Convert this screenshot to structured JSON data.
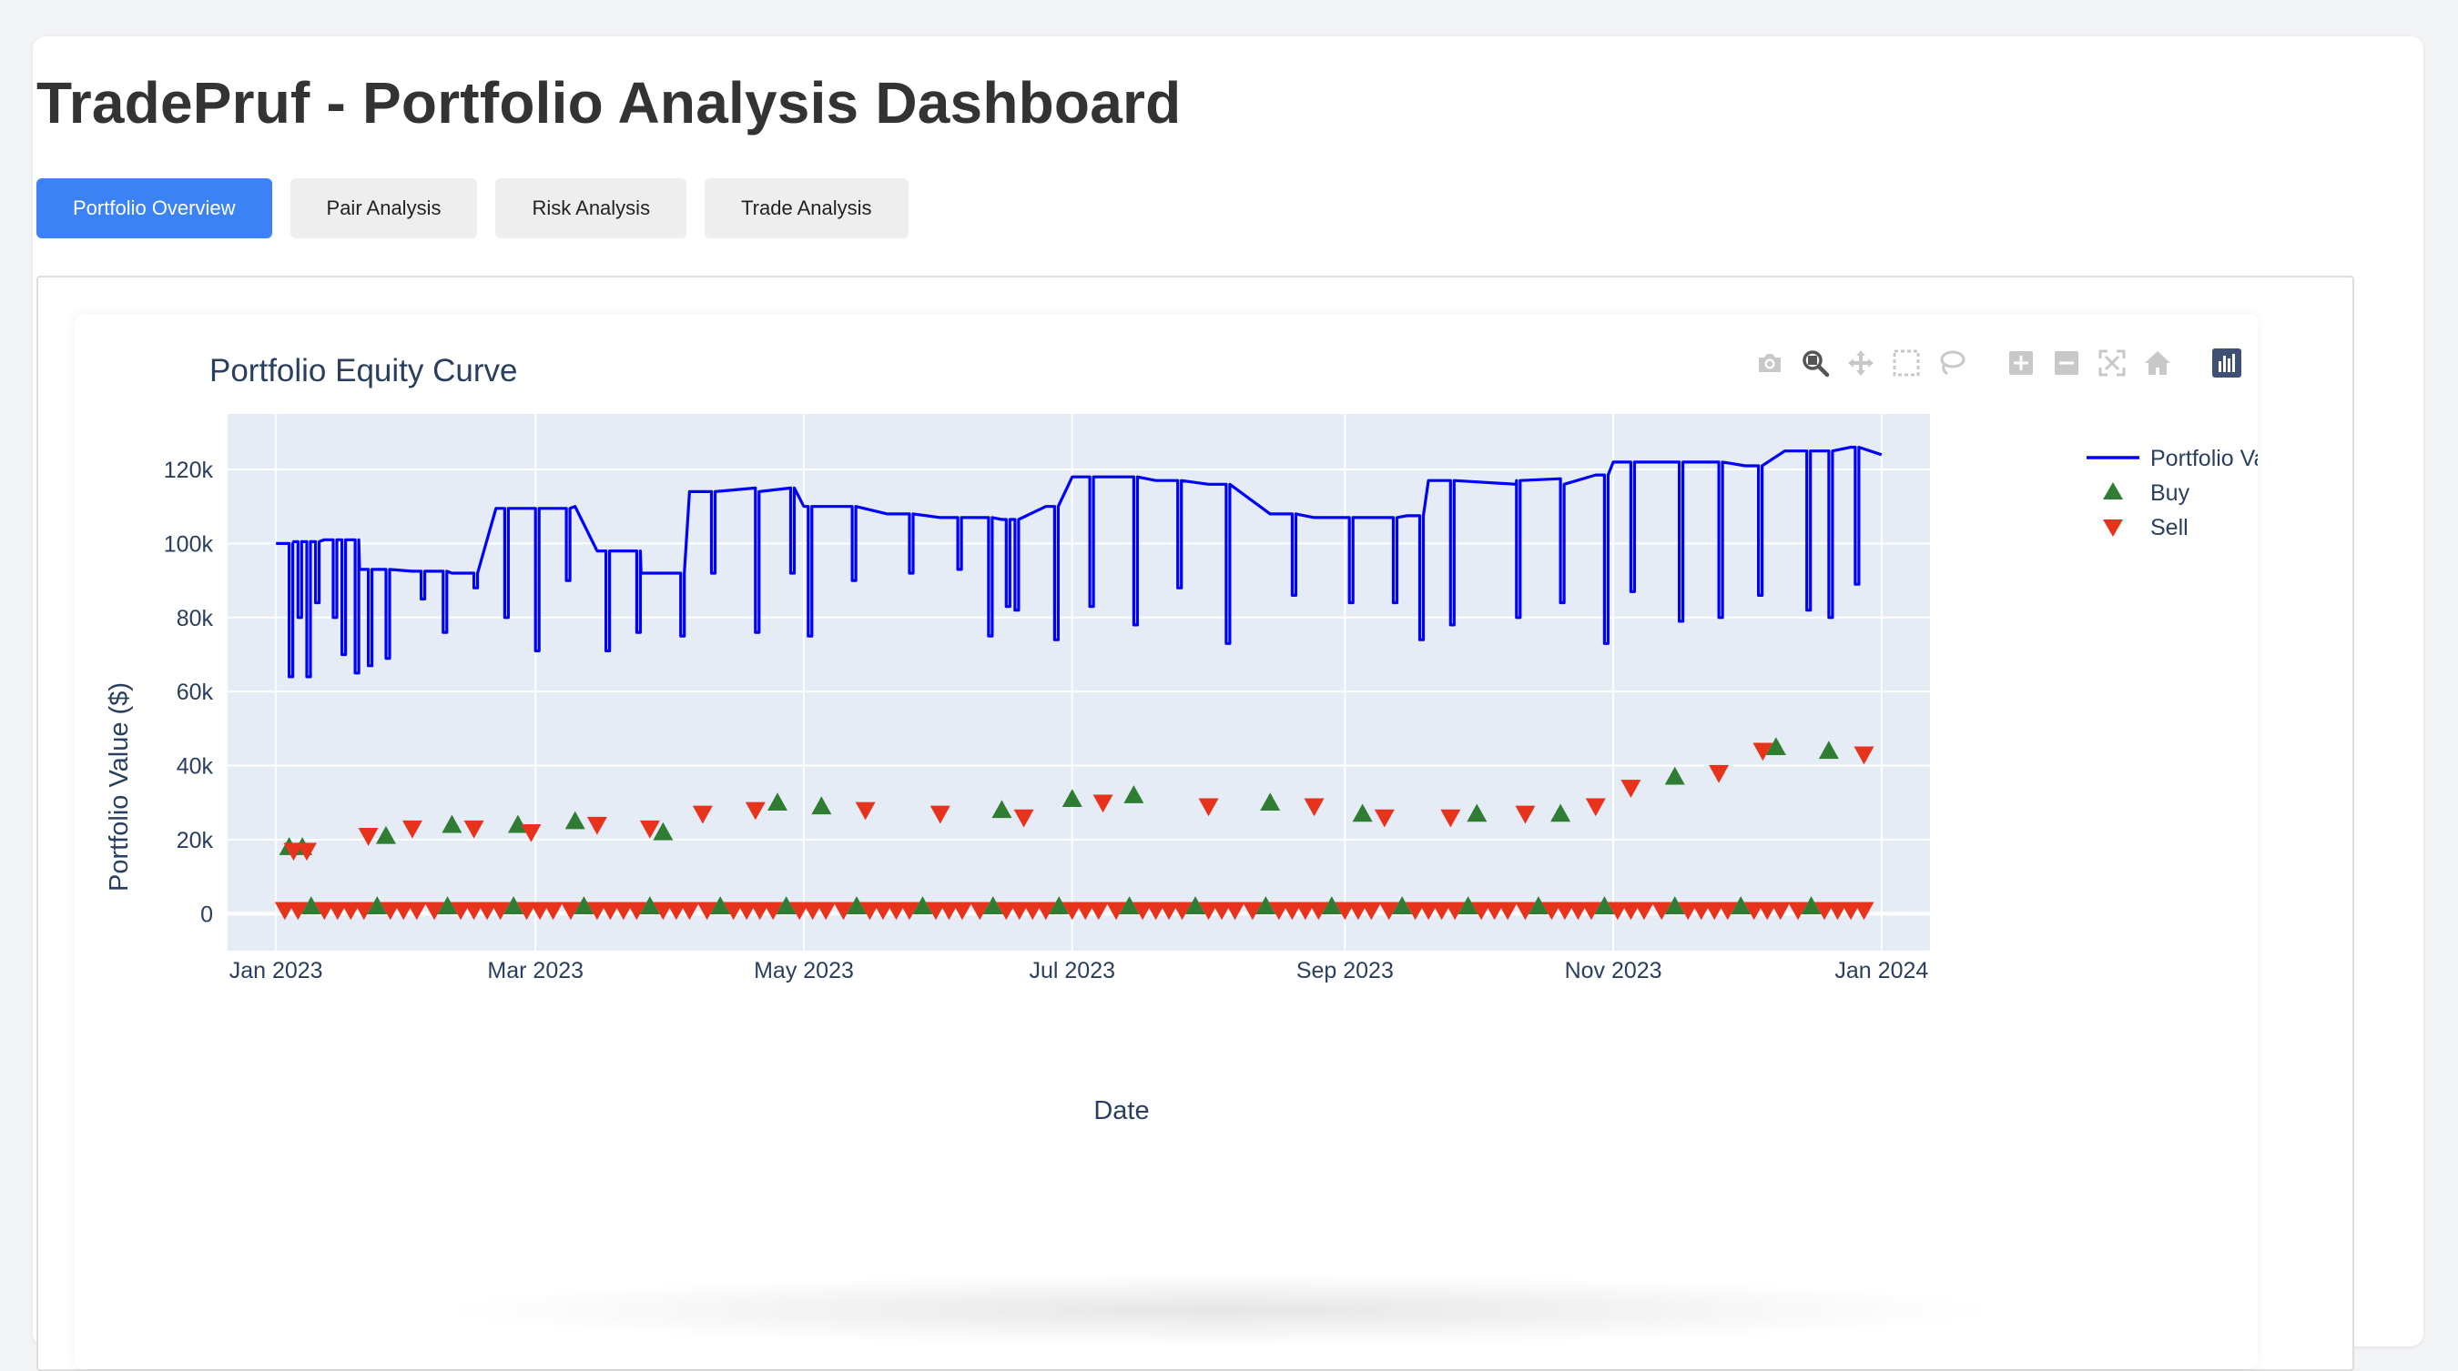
{
  "page": {
    "title": "TradePruf - Portfolio Analysis Dashboard"
  },
  "tabs": [
    {
      "label": "Portfolio Overview",
      "active": true
    },
    {
      "label": "Pair Analysis",
      "active": false
    },
    {
      "label": "Risk Analysis",
      "active": false
    },
    {
      "label": "Trade Analysis",
      "active": false
    }
  ],
  "colors": {
    "accent": "#3b82f6",
    "plot_bg": "#e5ecf6",
    "line": "#0000ff",
    "buy": "#2e7d32",
    "sell": "#e8331c"
  },
  "modebar": [
    "camera-icon",
    "zoom-icon",
    "pan-icon",
    "box-select-icon",
    "lasso-select-icon",
    "zoom-in-icon",
    "zoom-out-icon",
    "autoscale-icon",
    "reset-axes-icon",
    "plotly-logo-icon"
  ],
  "chart_data": {
    "type": "line",
    "title": "Portfolio Equity Curve",
    "xlabel": "Date",
    "ylabel": "Portfolio Value ($)",
    "xlim": [
      "2022-12-21",
      "2024-01-12"
    ],
    "ylim": [
      -10000,
      135000
    ],
    "grid": true,
    "legend_position": "top-right",
    "x_ticks": [
      {
        "label": "Jan 2023",
        "date": "2023-01-01"
      },
      {
        "label": "Mar 2023",
        "date": "2023-03-01"
      },
      {
        "label": "May 2023",
        "date": "2023-05-01"
      },
      {
        "label": "Jul 2023",
        "date": "2023-07-01"
      },
      {
        "label": "Sep 2023",
        "date": "2023-09-01"
      },
      {
        "label": "Nov 2023",
        "date": "2023-11-01"
      },
      {
        "label": "Jan 2024",
        "date": "2024-01-01"
      }
    ],
    "y_ticks": [
      {
        "label": "0",
        "value": 0
      },
      {
        "label": "20k",
        "value": 20000
      },
      {
        "label": "40k",
        "value": 40000
      },
      {
        "label": "60k",
        "value": 60000
      },
      {
        "label": "80k",
        "value": 80000
      },
      {
        "label": "100k",
        "value": 100000
      },
      {
        "label": "120k",
        "value": 120000
      }
    ],
    "series": [
      {
        "name": "Portfolio Value",
        "mode": "lines",
        "color": "#0000ff",
        "base_points": [
          [
            "2023-01-01",
            100000
          ],
          [
            "2023-01-05",
            100500
          ],
          [
            "2023-01-12",
            101000
          ],
          [
            "2023-01-20",
            93000
          ],
          [
            "2023-02-01",
            92500
          ],
          [
            "2023-02-10",
            92000
          ],
          [
            "2023-02-20",
            109500
          ],
          [
            "2023-03-01",
            109500
          ],
          [
            "2023-03-10",
            110000
          ],
          [
            "2023-03-15",
            98000
          ],
          [
            "2023-03-25",
            92000
          ],
          [
            "2023-04-01",
            92000
          ],
          [
            "2023-04-05",
            114000
          ],
          [
            "2023-04-20",
            115000
          ],
          [
            "2023-05-01",
            110000
          ],
          [
            "2023-05-20",
            108000
          ],
          [
            "2023-06-01",
            107000
          ],
          [
            "2023-06-15",
            106500
          ],
          [
            "2023-06-25",
            110000
          ],
          [
            "2023-07-01",
            118000
          ],
          [
            "2023-07-20",
            117000
          ],
          [
            "2023-08-01",
            116000
          ],
          [
            "2023-08-15",
            108000
          ],
          [
            "2023-08-25",
            107000
          ],
          [
            "2023-09-01",
            107000
          ],
          [
            "2023-09-15",
            107500
          ],
          [
            "2023-09-20",
            117000
          ],
          [
            "2023-10-10",
            116000
          ],
          [
            "2023-10-20",
            117500
          ],
          [
            "2023-10-28",
            118500
          ],
          [
            "2023-11-01",
            122000
          ],
          [
            "2023-11-20",
            122000
          ],
          [
            "2023-12-01",
            121000
          ],
          [
            "2023-12-10",
            125000
          ],
          [
            "2023-12-25",
            126000
          ],
          [
            "2024-01-01",
            124000
          ]
        ],
        "dips": [
          [
            "2023-01-04",
            64000
          ],
          [
            "2023-01-06",
            80000
          ],
          [
            "2023-01-08",
            64000
          ],
          [
            "2023-01-10",
            84000
          ],
          [
            "2023-01-14",
            80000
          ],
          [
            "2023-01-16",
            70000
          ],
          [
            "2023-01-19",
            65000
          ],
          [
            "2023-01-22",
            67000
          ],
          [
            "2023-01-26",
            69000
          ],
          [
            "2023-02-03",
            85000
          ],
          [
            "2023-02-08",
            76000
          ],
          [
            "2023-02-15",
            88000
          ],
          [
            "2023-02-22",
            80000
          ],
          [
            "2023-03-01",
            71000
          ],
          [
            "2023-03-08",
            90000
          ],
          [
            "2023-03-17",
            71000
          ],
          [
            "2023-03-24",
            76000
          ],
          [
            "2023-04-03",
            75000
          ],
          [
            "2023-04-10",
            92000
          ],
          [
            "2023-04-20",
            76000
          ],
          [
            "2023-04-28",
            92000
          ],
          [
            "2023-05-02",
            75000
          ],
          [
            "2023-05-12",
            90000
          ],
          [
            "2023-05-25",
            92000
          ],
          [
            "2023-06-05",
            93000
          ],
          [
            "2023-06-12",
            75000
          ],
          [
            "2023-06-16",
            83000
          ],
          [
            "2023-06-18",
            82000
          ],
          [
            "2023-06-27",
            74000
          ],
          [
            "2023-07-05",
            83000
          ],
          [
            "2023-07-15",
            78000
          ],
          [
            "2023-07-25",
            88000
          ],
          [
            "2023-08-05",
            73000
          ],
          [
            "2023-08-20",
            86000
          ],
          [
            "2023-09-02",
            84000
          ],
          [
            "2023-09-12",
            84000
          ],
          [
            "2023-09-18",
            74000
          ],
          [
            "2023-09-25",
            78000
          ],
          [
            "2023-10-10",
            80000
          ],
          [
            "2023-10-20",
            84000
          ],
          [
            "2023-10-30",
            73000
          ],
          [
            "2023-11-05",
            87000
          ],
          [
            "2023-11-16",
            79000
          ],
          [
            "2023-11-25",
            80000
          ],
          [
            "2023-12-04",
            86000
          ],
          [
            "2023-12-15",
            82000
          ],
          [
            "2023-12-20",
            80000
          ],
          [
            "2023-12-26",
            89000
          ]
        ]
      },
      {
        "name": "Buy",
        "mode": "markers",
        "symbol": "triangle-up",
        "color": "#2e7d32",
        "points": [
          [
            "2023-01-04",
            18000
          ],
          [
            "2023-01-07",
            18000
          ],
          [
            "2023-01-26",
            21000
          ],
          [
            "2023-02-10",
            24000
          ],
          [
            "2023-02-25",
            24000
          ],
          [
            "2023-03-10",
            25000
          ],
          [
            "2023-03-30",
            22000
          ],
          [
            "2023-04-25",
            30000
          ],
          [
            "2023-05-05",
            29000
          ],
          [
            "2023-06-15",
            28000
          ],
          [
            "2023-07-01",
            31000
          ],
          [
            "2023-07-15",
            32000
          ],
          [
            "2023-08-15",
            30000
          ],
          [
            "2023-09-05",
            27000
          ],
          [
            "2023-10-01",
            27000
          ],
          [
            "2023-10-20",
            27000
          ],
          [
            "2023-11-15",
            37000
          ],
          [
            "2023-12-08",
            45000
          ],
          [
            "2023-12-20",
            44000
          ]
        ]
      },
      {
        "name": "Sell",
        "mode": "markers",
        "symbol": "triangle-down",
        "color": "#e8331c",
        "points": [
          [
            "2023-01-05",
            17000
          ],
          [
            "2023-01-08",
            17000
          ],
          [
            "2023-01-22",
            21000
          ],
          [
            "2023-02-01",
            23000
          ],
          [
            "2023-02-15",
            23000
          ],
          [
            "2023-02-28",
            22000
          ],
          [
            "2023-03-15",
            24000
          ],
          [
            "2023-03-27",
            23000
          ],
          [
            "2023-04-08",
            27000
          ],
          [
            "2023-04-20",
            28000
          ],
          [
            "2023-05-15",
            28000
          ],
          [
            "2023-06-01",
            27000
          ],
          [
            "2023-06-20",
            26000
          ],
          [
            "2023-07-08",
            30000
          ],
          [
            "2023-08-01",
            29000
          ],
          [
            "2023-08-25",
            29000
          ],
          [
            "2023-09-10",
            26000
          ],
          [
            "2023-09-25",
            26000
          ],
          [
            "2023-10-12",
            27000
          ],
          [
            "2023-10-28",
            29000
          ],
          [
            "2023-11-05",
            34000
          ],
          [
            "2023-11-25",
            38000
          ],
          [
            "2023-12-05",
            44000
          ],
          [
            "2023-12-28",
            43000
          ]
        ]
      }
    ]
  }
}
